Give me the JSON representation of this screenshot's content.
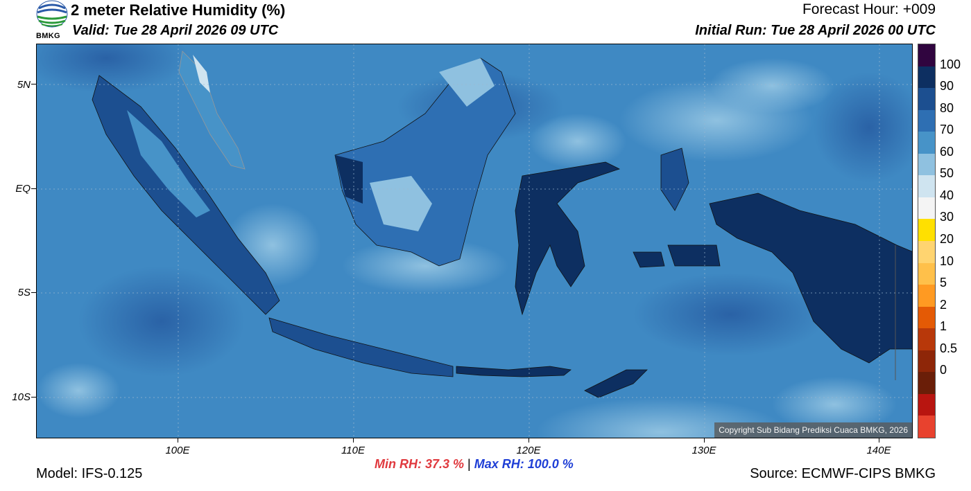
{
  "header": {
    "title": "2 meter Relative Humidity (%)",
    "valid": "Valid: Tue 28 April 2026 09 UTC",
    "forecast_hour": "Forecast Hour: +009",
    "initial_run": "Initial Run: Tue 28 April 2026 00 UTC",
    "logo_text": "BMKG"
  },
  "map": {
    "lat_labels": [
      "5N",
      "EQ",
      "5S",
      "10S"
    ],
    "lon_labels": [
      "100E",
      "110E",
      "120E",
      "130E",
      "140E"
    ],
    "copyright": "Copyright Sub Bidang Prediksi Cuaca BMKG, 2026"
  },
  "colorbar": {
    "labels": [
      "100",
      "90",
      "80",
      "70",
      "60",
      "50",
      "40",
      "30",
      "20",
      "10",
      "5",
      "2",
      "1",
      "0.5",
      "0"
    ],
    "colors": [
      "#30053f",
      "#0d2f61",
      "#1c4f90",
      "#2e6fb3",
      "#4793c8",
      "#8fc1e0",
      "#cfe4f0",
      "#f4f4f4",
      "#ffe000",
      "#ffd470",
      "#ffc04a",
      "#ff9a22",
      "#e45a05",
      "#b8380a",
      "#8e2608",
      "#6a1e08",
      "#b81510",
      "#e8422e"
    ]
  },
  "footer": {
    "model": "Model: IFS-0.125",
    "min_rh": "Min RH:  37.3 %",
    "separator": "|",
    "max_rh": "Max RH: 100.0 %",
    "source": "Source: ECMWF-CIPS BMKG"
  }
}
